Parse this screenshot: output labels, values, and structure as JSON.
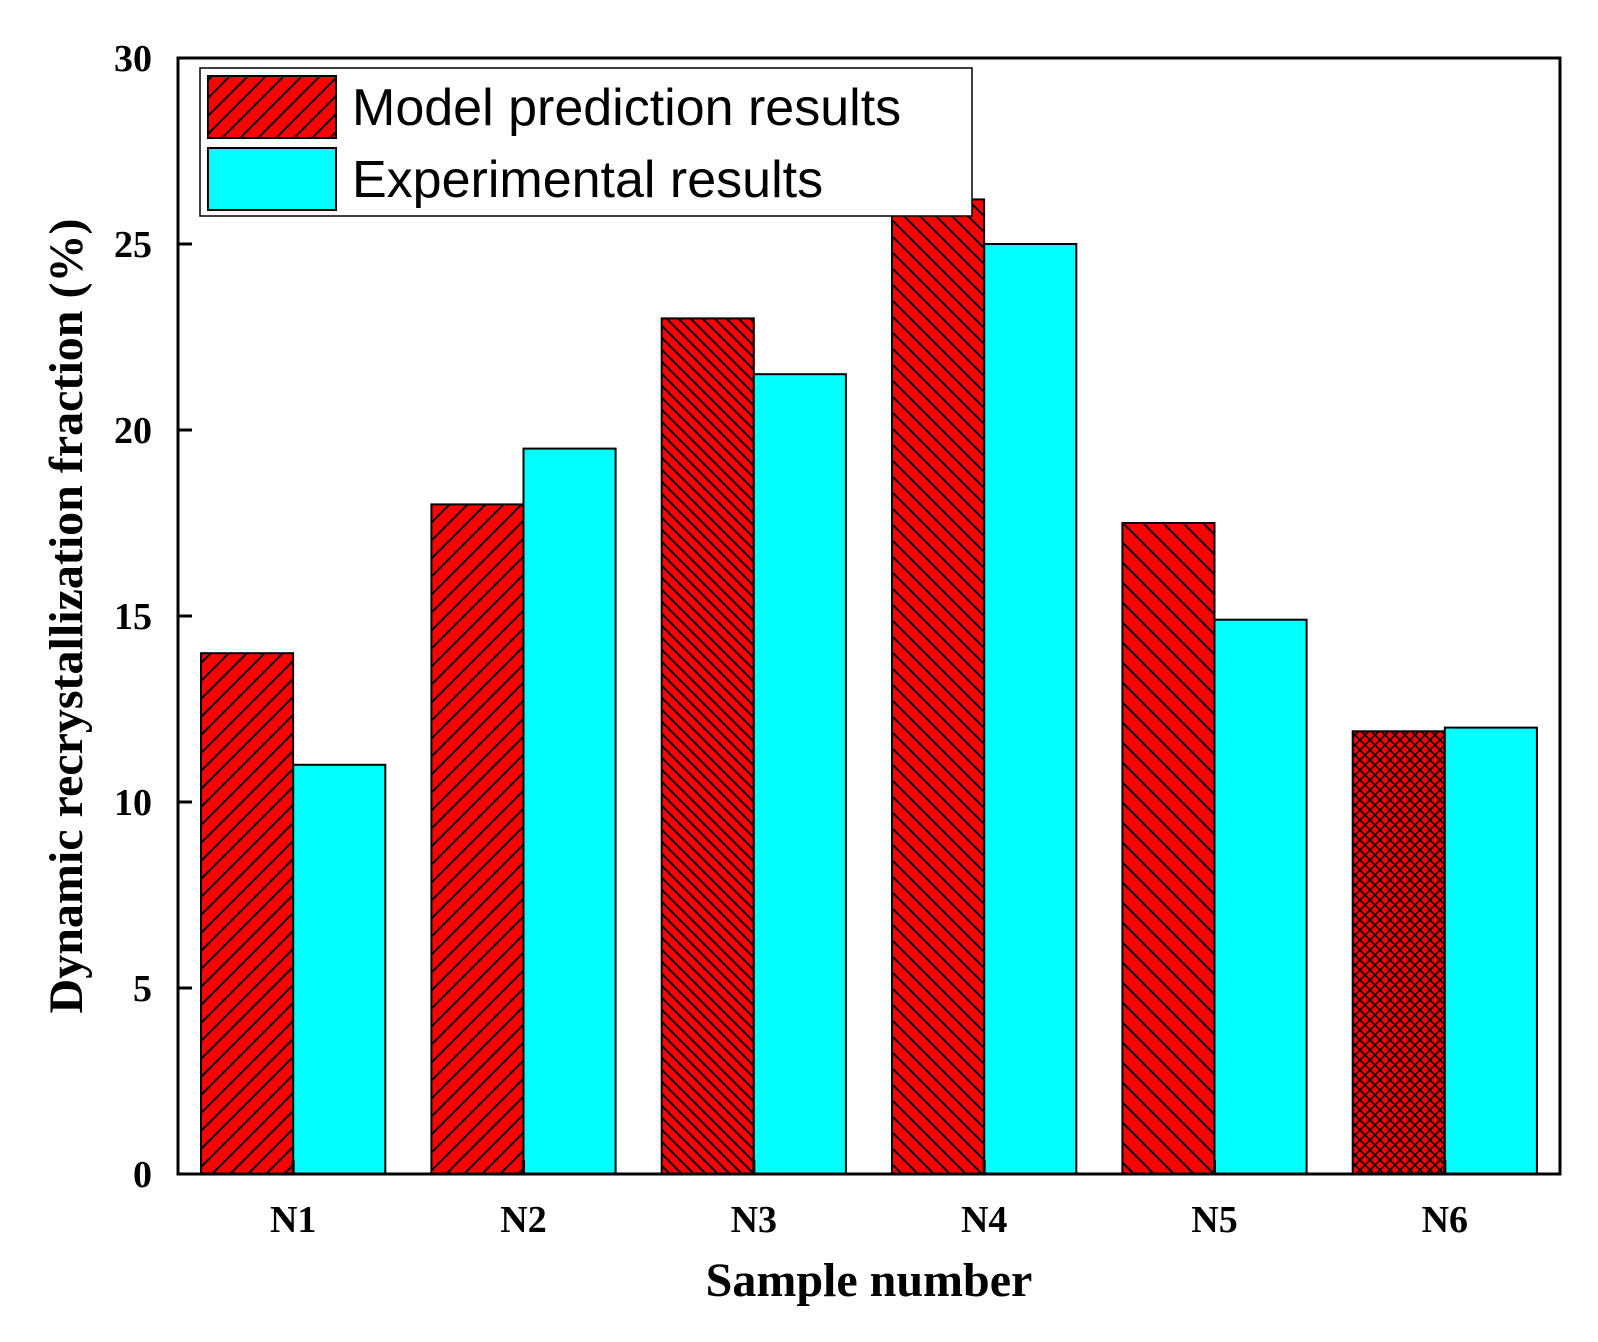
{
  "chart_data": {
    "type": "bar",
    "title": "",
    "xlabel": "Sample number",
    "ylabel": "Dynamic recrystallization fraction (%)",
    "categories": [
      "N1",
      "N2",
      "N3",
      "N4",
      "N5",
      "N6"
    ],
    "ylim": [
      0,
      30
    ],
    "yticks": [
      0,
      5,
      10,
      15,
      20,
      25,
      30
    ],
    "ytick_labels": [
      "0",
      "5",
      "10",
      "15",
      "20",
      "25",
      "30"
    ],
    "grid": false,
    "legend_position": "top-left",
    "series": [
      {
        "name": "Model prediction results",
        "color": "#ff0000",
        "pattern": "hatched",
        "values": [
          14.0,
          18.0,
          23.0,
          26.2,
          17.5,
          11.9
        ]
      },
      {
        "name": "Experimental results",
        "color": "#00ffff",
        "pattern": "solid",
        "values": [
          11.0,
          19.5,
          21.5,
          25.0,
          14.9,
          12.0
        ]
      }
    ]
  }
}
